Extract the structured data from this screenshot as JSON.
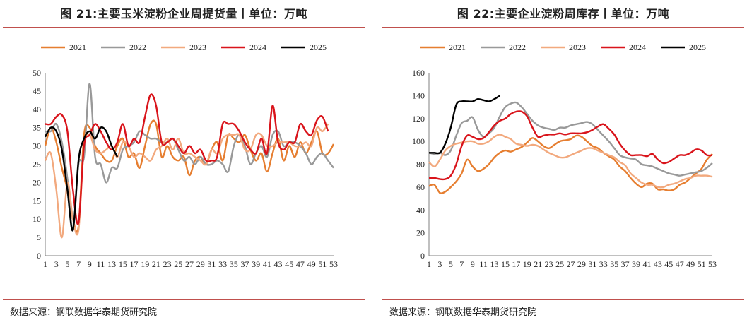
{
  "chart_data": [
    {
      "type": "line",
      "title": "图 21:主要玉米淀粉企业周提货量丨单位：万吨",
      "source": "数据来源：钢联数据华泰期货研究院",
      "xlabel": "",
      "ylabel": "",
      "ylim": [
        0,
        50
      ],
      "yticks": [
        "0",
        "5",
        "10",
        "15",
        "20",
        "25",
        "30",
        "35",
        "40",
        "45",
        "50"
      ],
      "xticks": [
        "1",
        "3",
        "5",
        "7",
        "9",
        "11",
        "13",
        "15",
        "17",
        "19",
        "21",
        "23",
        "25",
        "27",
        "29",
        "31",
        "33",
        "35",
        "37",
        "39",
        "41",
        "43",
        "45",
        "47",
        "49",
        "51",
        "53"
      ],
      "legend_position": "top",
      "series": [
        {
          "name": "2021",
          "color": "#e67e30",
          "values": [
            30,
            35,
            31,
            24,
            18,
            10,
            8,
            33,
            35,
            30,
            28,
            26,
            26,
            30,
            32,
            27,
            28,
            24,
            30,
            36,
            36,
            27,
            30,
            27,
            26,
            27,
            22,
            26,
            27,
            25,
            29,
            31,
            26,
            33,
            32,
            31,
            33,
            29,
            26,
            28,
            23,
            28,
            32,
            26,
            30,
            27,
            31,
            28,
            31,
            34,
            28,
            28,
            30.5
          ]
        },
        {
          "name": "2022",
          "color": "#999999",
          "values": [
            34,
            34,
            36,
            31,
            21,
            7,
            25,
            27,
            47,
            27,
            25,
            20,
            24,
            24,
            29,
            30,
            31,
            34,
            33,
            32,
            32,
            31,
            31,
            32,
            29,
            26,
            27,
            25,
            27,
            25,
            25,
            26,
            25,
            23,
            30,
            33,
            30,
            25,
            28,
            30,
            27,
            33,
            34,
            30,
            31,
            31,
            30,
            28,
            25,
            27,
            28,
            26,
            24
          ]
        },
        {
          "name": "2023",
          "color": "#f2a97e",
          "values": [
            26,
            28,
            18,
            5,
            20,
            10,
            7,
            30,
            33,
            29,
            28,
            29,
            30,
            27,
            31,
            30,
            27,
            28,
            27,
            26,
            29,
            30,
            32,
            29,
            32,
            28,
            28,
            27,
            26,
            25,
            29,
            28,
            32,
            33,
            33,
            33,
            29,
            29,
            33,
            33,
            30,
            30,
            31,
            31,
            31,
            30,
            30,
            31,
            30,
            35,
            34,
            36,
            null
          ]
        },
        {
          "name": "2024",
          "color": "#d9141b",
          "values": [
            36,
            36,
            38,
            38.5,
            34,
            18,
            9,
            30,
            33,
            36,
            34,
            31,
            29,
            31,
            36,
            30,
            32,
            31,
            38,
            44,
            41,
            31,
            31,
            32,
            30,
            28,
            30,
            28,
            29,
            26,
            26,
            27,
            36,
            36,
            36,
            34,
            31,
            29,
            28,
            32,
            28,
            41,
            31,
            29,
            31,
            31,
            36,
            34,
            33,
            37,
            38,
            34,
            null
          ]
        },
        {
          "name": "2025",
          "color": "#000000",
          "values": [
            32.5,
            35,
            34,
            29,
            18,
            7,
            26,
            32,
            34,
            32,
            35,
            34,
            30,
            27,
            null,
            null,
            null,
            null,
            null,
            null,
            null,
            null,
            null,
            null,
            null,
            null,
            null,
            null,
            null,
            null,
            null,
            null,
            null,
            null,
            null,
            null,
            null,
            null,
            null,
            null,
            null,
            null,
            null,
            null,
            null,
            null,
            null,
            null,
            null,
            null,
            null,
            null,
            null
          ]
        }
      ]
    },
    {
      "type": "line",
      "title": "图 22:主要企业淀粉周库存丨单位：万吨",
      "source": "数据来源：钢联数据华泰期货研究院",
      "xlabel": "",
      "ylabel": "",
      "ylim": [
        0,
        160
      ],
      "yticks": [
        "0",
        "20",
        "40",
        "60",
        "80",
        "100",
        "120",
        "140",
        "160"
      ],
      "xticks": [
        "1",
        "3",
        "5",
        "7",
        "9",
        "11",
        "13",
        "15",
        "17",
        "19",
        "21",
        "23",
        "25",
        "27",
        "29",
        "31",
        "33",
        "35",
        "37",
        "39",
        "41",
        "43",
        "45",
        "47",
        "49",
        "51",
        "53"
      ],
      "legend_position": "top",
      "series": [
        {
          "name": "2021",
          "color": "#e67e30",
          "values": [
            61,
            62,
            55,
            56,
            60,
            65,
            72,
            84,
            78,
            74,
            76,
            80,
            86,
            90,
            92,
            91,
            93,
            95,
            99,
            103,
            100,
            96,
            94,
            97,
            100,
            101,
            102,
            105,
            104,
            100,
            96,
            94,
            90,
            87,
            84,
            78,
            74,
            68,
            63,
            60,
            63,
            63,
            58,
            58,
            57,
            58,
            62,
            64,
            68,
            72,
            76,
            84,
            89
          ]
        },
        {
          "name": "2022",
          "color": "#999999",
          "values": [
            90,
            89,
            90,
            88,
            92,
            105,
            116,
            118,
            121,
            110,
            104,
            107,
            112,
            122,
            130,
            133,
            134,
            130,
            124,
            118,
            114,
            112,
            111,
            110,
            112,
            112,
            114,
            115,
            116,
            117,
            115,
            110,
            105,
            100,
            94,
            88,
            86,
            85,
            84,
            80,
            79,
            78,
            76,
            74,
            72,
            71,
            70,
            71,
            72,
            73,
            74,
            77,
            81
          ]
        },
        {
          "name": "2023",
          "color": "#f2a97e",
          "values": [
            82,
            78,
            84,
            92,
            96,
            98,
            99,
            100,
            100,
            98,
            98,
            100,
            104,
            106,
            104,
            102,
            98,
            97,
            96,
            97,
            96,
            93,
            90,
            88,
            86,
            86,
            88,
            90,
            92,
            94,
            94,
            92,
            90,
            88,
            86,
            82,
            79,
            72,
            68,
            64,
            62,
            62,
            60,
            60,
            62,
            63,
            65,
            67,
            68,
            70,
            70,
            70,
            69
          ]
        },
        {
          "name": "2024",
          "color": "#d9141b",
          "values": [
            68,
            68,
            67,
            67,
            70,
            80,
            96,
            105,
            104,
            102,
            103,
            108,
            114,
            118,
            120,
            124,
            126,
            126,
            122,
            112,
            104,
            105,
            106,
            106,
            107,
            106,
            107,
            107,
            107,
            108,
            110,
            113,
            115,
            111,
            106,
            98,
            92,
            88,
            88,
            88,
            87,
            89,
            84,
            81,
            82,
            85,
            88,
            88,
            90,
            93,
            92,
            88,
            88
          ]
        },
        {
          "name": "2025",
          "color": "#000000",
          "values": [
            90,
            90,
            90,
            98,
            112,
            132,
            135,
            135,
            135,
            137,
            136,
            135,
            137,
            140,
            null,
            null,
            null,
            null,
            null,
            null,
            null,
            null,
            null,
            null,
            null,
            null,
            null,
            null,
            null,
            null,
            null,
            null,
            null,
            null,
            null,
            null,
            null,
            null,
            null,
            null,
            null,
            null,
            null,
            null,
            null,
            null,
            null,
            null,
            null,
            null,
            null,
            null,
            null
          ]
        }
      ]
    }
  ]
}
